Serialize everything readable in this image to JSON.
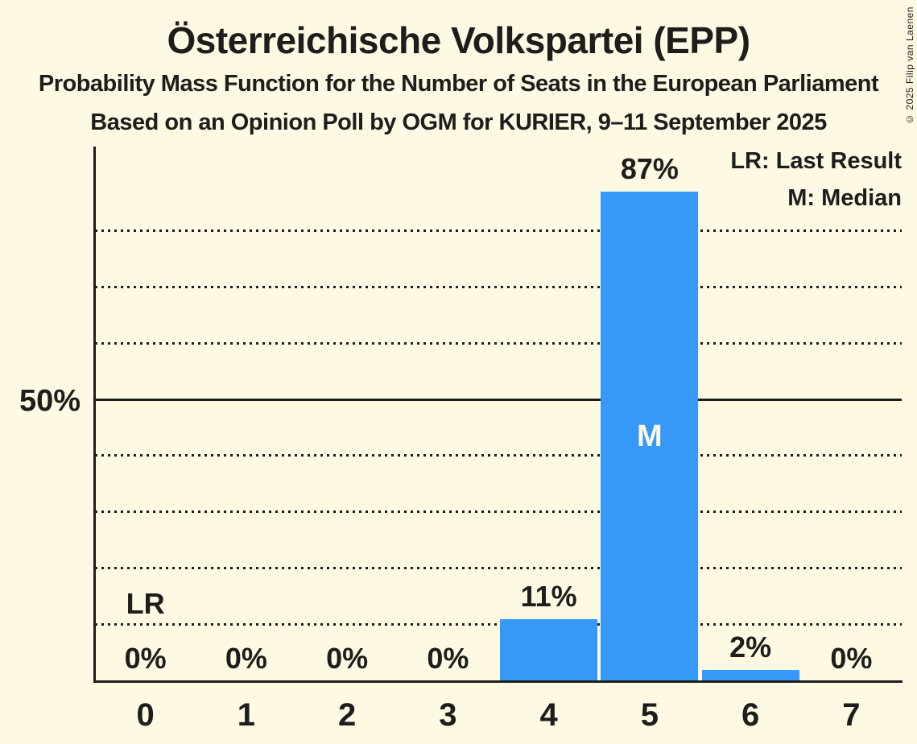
{
  "header": {
    "title": "Österreichische Volkspartei (EPP)",
    "subtitle1": "Probability Mass Function for the Number of Seats in the European Parliament",
    "subtitle2": "Based on an Opinion Poll by OGM for KURIER, 9–11 September 2025"
  },
  "copyright": "© 2025 Filip van Laenen",
  "legend": {
    "lr": "LR: Last Result",
    "m": "M: Median"
  },
  "y_axis": {
    "tick_label": "50%"
  },
  "colors": {
    "background": "#FDF9E3",
    "bar": "#3699FA",
    "text": "#1d1d1b",
    "median_text": "#FDF9E3"
  },
  "chart_data": {
    "type": "bar",
    "title": "Österreichische Volkspartei (EPP)",
    "xlabel": "",
    "ylabel": "",
    "categories": [
      "0",
      "1",
      "2",
      "3",
      "4",
      "5",
      "6",
      "7"
    ],
    "values": [
      0,
      0,
      0,
      0,
      11,
      87,
      2,
      0
    ],
    "value_labels": [
      "0%",
      "0%",
      "0%",
      "0%",
      "11%",
      "87%",
      "2%",
      "0%"
    ],
    "ylim": [
      0,
      95
    ],
    "y_tick_labeled": [
      50
    ],
    "gridlines_dotted_pct": [
      10,
      20,
      30,
      40,
      60,
      70,
      80
    ],
    "gridline_solid_pct": 50,
    "legend_position": "top-right",
    "annotations": {
      "last_result": {
        "category": "0",
        "label": "LR"
      },
      "median": {
        "category": "5",
        "label": "M"
      }
    }
  }
}
